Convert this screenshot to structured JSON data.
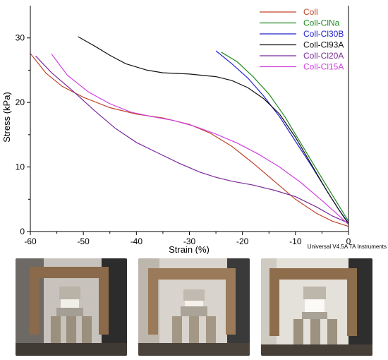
{
  "chart_data": {
    "type": "line",
    "title": "",
    "xlabel": "Strain (%)",
    "ylabel": "Stress (kPa)",
    "xlim": [
      -60,
      0
    ],
    "ylim": [
      0,
      35
    ],
    "xticks": [
      -60,
      -50,
      -40,
      -30,
      -20,
      -10,
      0
    ],
    "yticks": [
      0,
      10,
      20,
      30
    ],
    "grid": false,
    "legend_position": "top-right",
    "watermark": "Universal V4.5A TA Instruments",
    "series": [
      {
        "name": "Coll",
        "color": "#c0442a",
        "points": [
          [
            -60,
            27.6
          ],
          [
            -57,
            24.5
          ],
          [
            -54,
            22.5
          ],
          [
            -50,
            20.8
          ],
          [
            -45,
            19.2
          ],
          [
            -40,
            18.2
          ],
          [
            -35,
            17.6
          ],
          [
            -30,
            16.6
          ],
          [
            -26,
            15.2
          ],
          [
            -22,
            13.2
          ],
          [
            -18,
            10.6
          ],
          [
            -14,
            7.8
          ],
          [
            -10,
            5.0
          ],
          [
            -6,
            2.8
          ],
          [
            -3,
            1.6
          ],
          [
            0,
            0.8
          ]
        ]
      },
      {
        "name": "Coll-ClNa",
        "color": "#1e8a1e",
        "points": [
          [
            -24,
            27.8
          ],
          [
            -21,
            26.3
          ],
          [
            -18,
            24.0
          ],
          [
            -15,
            21.3
          ],
          [
            -12,
            17.8
          ],
          [
            -9,
            13.7
          ],
          [
            -6,
            9.6
          ],
          [
            -3,
            5.6
          ],
          [
            0,
            1.6
          ]
        ]
      },
      {
        "name": "Coll-Cl30B",
        "color": "#2222cc",
        "points": [
          [
            -25,
            28.0
          ],
          [
            -22,
            26.0
          ],
          [
            -19,
            23.8
          ],
          [
            -16,
            21.0
          ],
          [
            -13,
            17.8
          ],
          [
            -10,
            14.0
          ],
          [
            -7,
            10.2
          ],
          [
            -4,
            6.2
          ],
          [
            -2,
            3.6
          ],
          [
            0,
            1.3
          ]
        ]
      },
      {
        "name": "Coll-Cl93A",
        "color": "#111111",
        "points": [
          [
            -51,
            30.2
          ],
          [
            -48,
            28.8
          ],
          [
            -45,
            27.3
          ],
          [
            -42,
            26.0
          ],
          [
            -38,
            25.0
          ],
          [
            -35,
            24.6
          ],
          [
            -30,
            24.4
          ],
          [
            -25,
            24.0
          ],
          [
            -22,
            23.4
          ],
          [
            -19,
            22.3
          ],
          [
            -16,
            20.6
          ],
          [
            -13,
            18.2
          ],
          [
            -10,
            14.6
          ],
          [
            -7,
            10.4
          ],
          [
            -4,
            6.2
          ],
          [
            -2,
            3.6
          ],
          [
            0,
            1.2
          ]
        ]
      },
      {
        "name": "Coll-Cl20A",
        "color": "#7a2a9a",
        "points": [
          [
            -59,
            27.2
          ],
          [
            -56,
            24.6
          ],
          [
            -52,
            21.8
          ],
          [
            -48,
            18.8
          ],
          [
            -44,
            16.0
          ],
          [
            -40,
            13.8
          ],
          [
            -36,
            12.2
          ],
          [
            -32,
            10.6
          ],
          [
            -28,
            9.2
          ],
          [
            -25,
            8.4
          ],
          [
            -22,
            7.8
          ],
          [
            -18,
            7.2
          ],
          [
            -14,
            6.4
          ],
          [
            -10,
            5.4
          ],
          [
            -6,
            3.8
          ],
          [
            -3,
            2.4
          ],
          [
            0,
            1.3
          ]
        ]
      },
      {
        "name": "Coll-Cl15A",
        "color": "#d040e0",
        "points": [
          [
            -56,
            27.5
          ],
          [
            -53,
            24.2
          ],
          [
            -49,
            21.6
          ],
          [
            -45,
            19.8
          ],
          [
            -41,
            18.5
          ],
          [
            -37,
            17.8
          ],
          [
            -33,
            17.2
          ],
          [
            -29,
            16.3
          ],
          [
            -25,
            15.1
          ],
          [
            -21,
            13.7
          ],
          [
            -17,
            12.0
          ],
          [
            -13,
            10.0
          ],
          [
            -9,
            7.6
          ],
          [
            -5,
            4.8
          ],
          [
            -2,
            2.6
          ],
          [
            0,
            1.1
          ]
        ]
      }
    ]
  },
  "photos": [
    {
      "name": "press-photo-1"
    },
    {
      "name": "press-photo-2"
    },
    {
      "name": "press-photo-3"
    }
  ]
}
